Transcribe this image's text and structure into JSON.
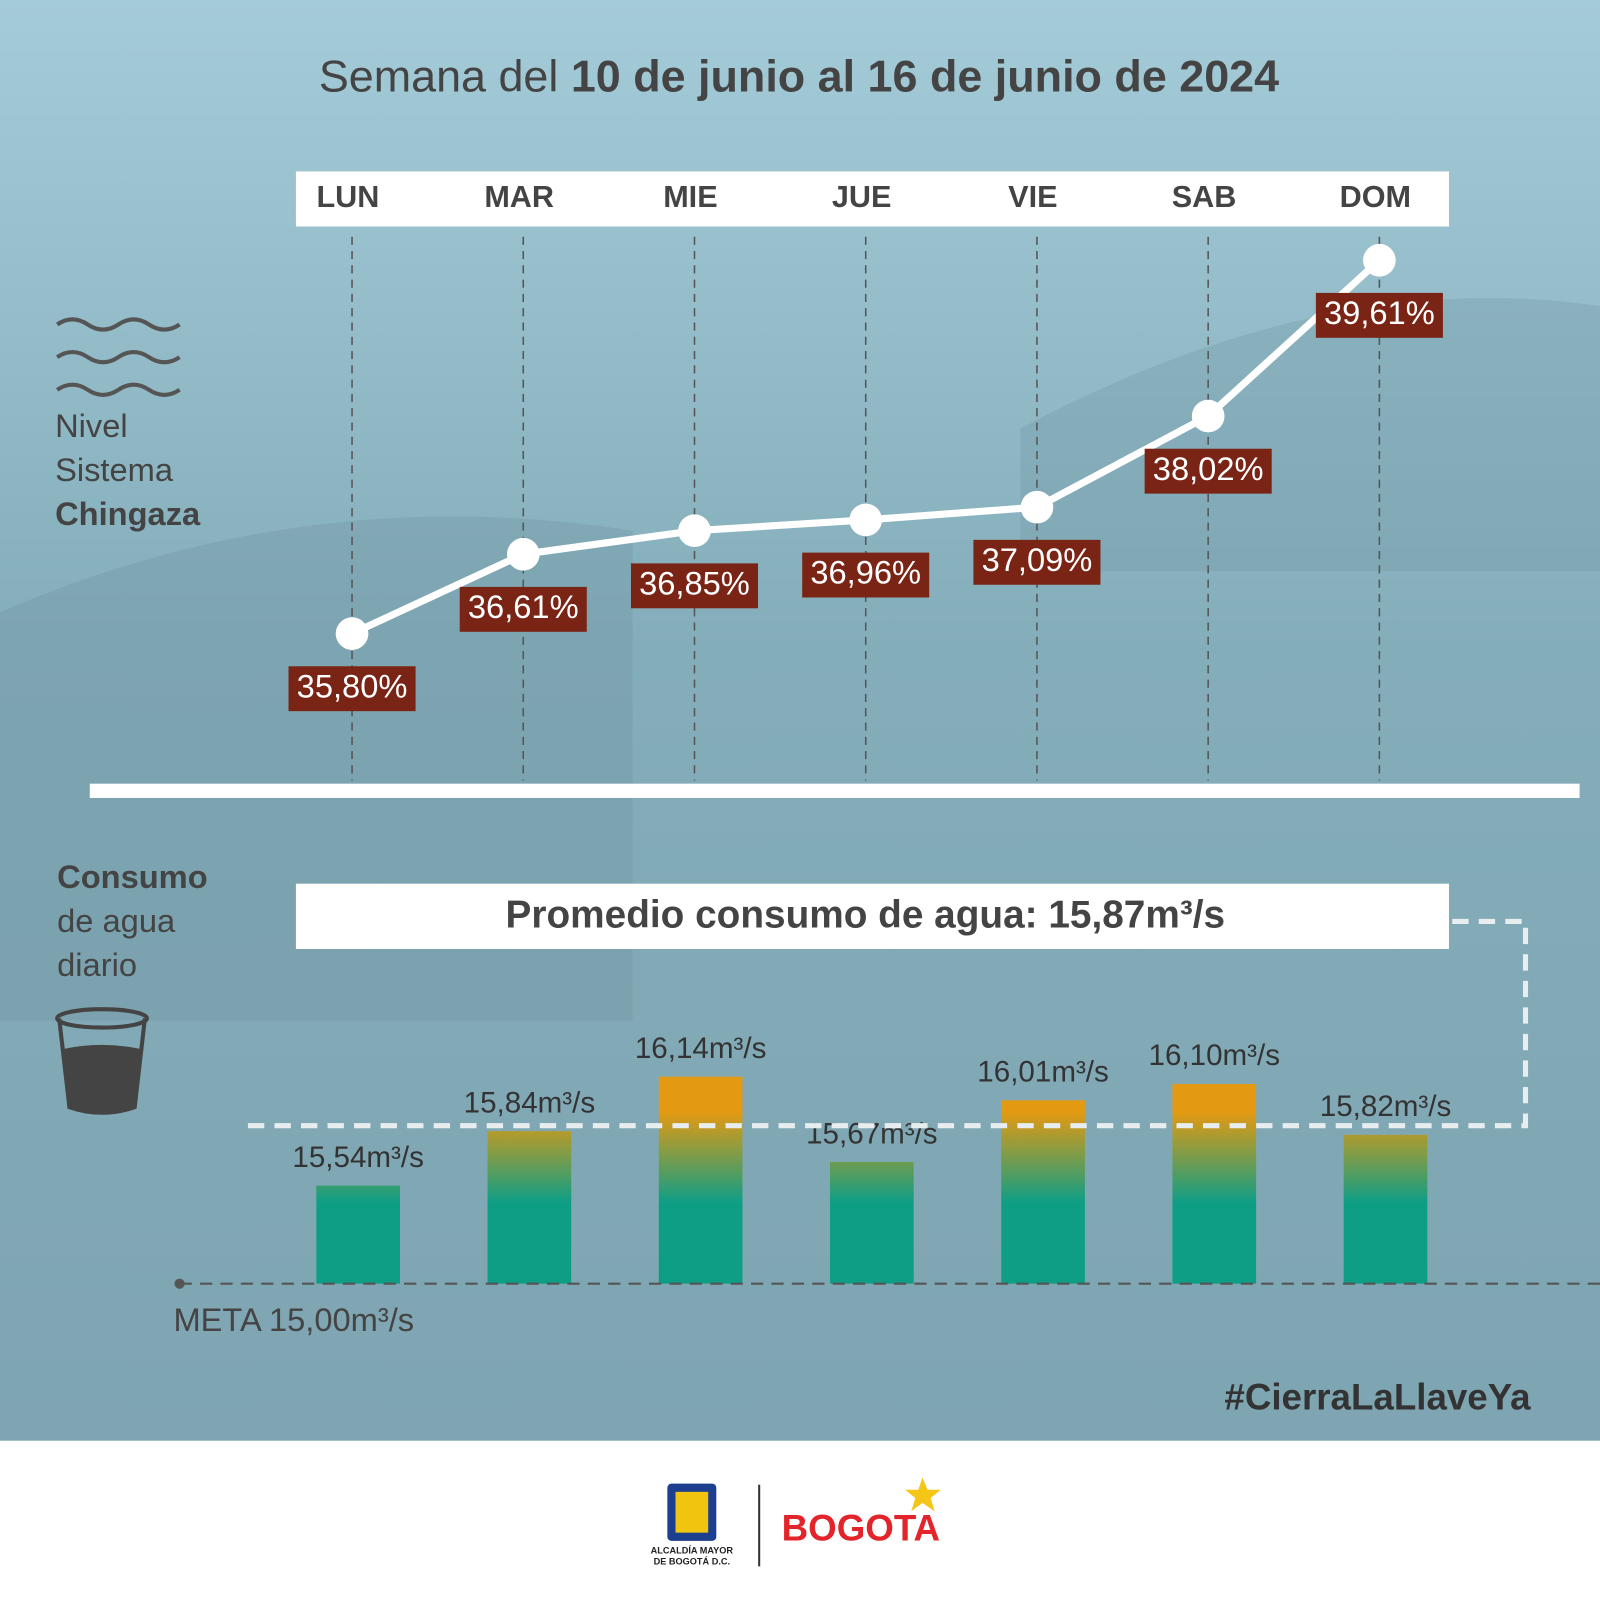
{
  "header": {
    "title_regular": "Semana del",
    "title_bold": "10 de junio al 16 de junio de 2024"
  },
  "chart_data": [
    {
      "type": "line",
      "label_lines": [
        "Nivel",
        "Sistema",
        "Chingaza"
      ],
      "categories": [
        "LUN",
        "MAR",
        "MIE",
        "JUE",
        "VIE",
        "SAB",
        "DOM"
      ],
      "values": [
        35.8,
        36.61,
        36.85,
        36.96,
        37.09,
        38.02,
        39.61
      ],
      "value_labels": [
        "35,80%",
        "36,61%",
        "36,85%",
        "36,96%",
        "37,09%",
        "38,02%",
        "39,61%"
      ],
      "ylim": [
        34.3,
        39.85
      ],
      "color": "#ffffff",
      "label_color": "#7a2415"
    },
    {
      "type": "bar",
      "label_lines": [
        "Consumo",
        "de agua",
        "diario"
      ],
      "title": "Promedio consumo de agua: 15,87m³/s",
      "average": 15.87,
      "target": 15.0,
      "target_label": "META 15,00m³/s",
      "values": [
        15.54,
        15.84,
        16.14,
        15.67,
        16.01,
        16.1,
        15.82
      ],
      "value_labels": [
        "15,54m³/s",
        "15,84m³/s",
        "16,14m³/s",
        "15,67m³/s",
        "16,01m³/s",
        "16,10m³/s",
        "15,82m³/s"
      ],
      "ylim": [
        15.0,
        16.45
      ],
      "colors": [
        "#0e9e86",
        "#e39a12"
      ]
    }
  ],
  "hashtag": "#CierraLaLlaveYa",
  "footer": {
    "crest_line1": "ALCALDÍA MAYOR",
    "crest_line2": "DE BOGOTÁ D.C.",
    "brand": "BOGOTA"
  }
}
